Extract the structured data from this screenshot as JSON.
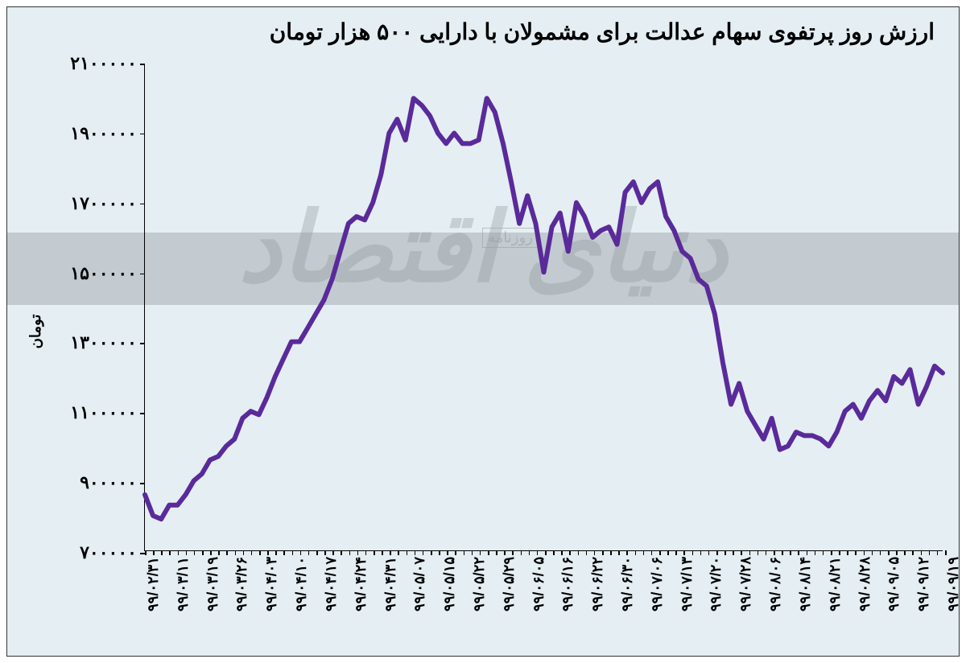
{
  "chart": {
    "type": "line",
    "title": "ارزش روز پرتفوی سهام عدالت برای مشمولان با دارایی ۵۰۰ هزار تومان",
    "title_fontsize": 28,
    "y_axis_label": "تومان",
    "y_axis_label_fontsize": 18,
    "background_color": "#e4eef3",
    "line_color": "#5a2a9a",
    "line_width": 6,
    "ylim": [
      700000,
      2100000
    ],
    "y_ticks": [
      700000,
      900000,
      1100000,
      1300000,
      1500000,
      1700000,
      1900000,
      2100000
    ],
    "y_tick_labels": [
      "۷۰۰۰۰۰",
      "۹۰۰۰۰۰",
      "۱۱۰۰۰۰۰",
      "۱۳۰۰۰۰۰",
      "۱۵۰۰۰۰۰",
      "۱۷۰۰۰۰۰",
      "۱۹۰۰۰۰۰",
      "۲۱۰۰۰۰۰"
    ],
    "x_tick_labels": [
      "۹۹/۰۲/۳۱",
      "۹۹/۰۳/۱۱",
      "۹۹/۰۳/۱۹",
      "۹۹/۰۳/۲۶",
      "۹۹/۰۴/۰۳",
      "۹۹/۰۴/۱۰",
      "۹۹/۰۴/۱۷",
      "۹۹/۰۴/۲۴",
      "۹۹/۰۴/۳۱",
      "۹۹/۰۵/۰۷",
      "۹۹/۰۵/۱۵",
      "۹۹/۰۵/۲۲",
      "۹۹/۰۵/۲۹",
      "۹۹/۰۶/۰۵",
      "۹۹/۰۶/۱۶",
      "۹۹/۰۶/۲۲",
      "۹۹/۰۶/۳۰",
      "۹۹/۰۷/۰۶",
      "۹۹/۰۷/۱۳",
      "۹۹/۰۷/۲۰",
      "۹۹/۰۷/۲۸",
      "۹۹/۰۸/۰۶",
      "۹۹/۰۸/۱۴",
      "۹۹/۰۸/۲۱",
      "۹۹/۰۸/۲۸",
      "۹۹/۰۹/۰۵",
      "۹۹/۰۹/۱۲",
      "۹۹/۰۹/۱۹"
    ],
    "x_tick_fontsize": 18,
    "y_tick_fontsize": 22,
    "watermark_text": "دنیای اقتصاد",
    "watermark_small": "روزنامه",
    "watermark_band_color": "#a7aeb2",
    "series": [
      860000,
      800000,
      790000,
      830000,
      830000,
      860000,
      900000,
      920000,
      960000,
      970000,
      1000000,
      1020000,
      1080000,
      1100000,
      1090000,
      1140000,
      1200000,
      1250000,
      1300000,
      1300000,
      1340000,
      1380000,
      1420000,
      1480000,
      1560000,
      1640000,
      1660000,
      1650000,
      1700000,
      1780000,
      1900000,
      1940000,
      1880000,
      2000000,
      1980000,
      1950000,
      1900000,
      1870000,
      1900000,
      1870000,
      1870000,
      1880000,
      2000000,
      1960000,
      1870000,
      1760000,
      1640000,
      1720000,
      1640000,
      1500000,
      1630000,
      1670000,
      1560000,
      1700000,
      1660000,
      1600000,
      1620000,
      1630000,
      1580000,
      1730000,
      1760000,
      1700000,
      1740000,
      1760000,
      1660000,
      1620000,
      1560000,
      1540000,
      1480000,
      1460000,
      1380000,
      1240000,
      1120000,
      1180000,
      1100000,
      1060000,
      1020000,
      1080000,
      990000,
      1000000,
      1040000,
      1030000,
      1030000,
      1020000,
      1000000,
      1040000,
      1100000,
      1120000,
      1080000,
      1130000,
      1160000,
      1130000,
      1200000,
      1180000,
      1220000,
      1120000,
      1170000,
      1230000,
      1210000
    ]
  }
}
